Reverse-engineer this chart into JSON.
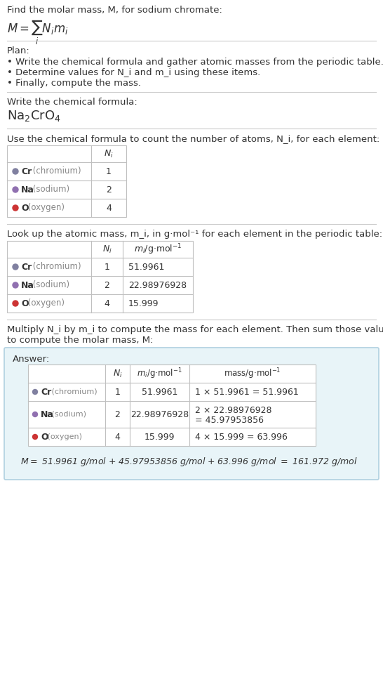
{
  "title_line1": "Find the molar mass, M, for sodium chromate:",
  "title_formula": "M = ∑ N_i m_i",
  "title_formula_sub": "i",
  "plan_header": "Plan:",
  "plan_bullets": [
    "• Write the chemical formula and gather atomic masses from the periodic table.",
    "• Determine values for N_i and m_i using these items.",
    "• Finally, compute the mass."
  ],
  "formula_header": "Write the chemical formula:",
  "chemical_formula": "Na₂CrO₄",
  "table1_header": "Use the chemical formula to count the number of atoms, N_i, for each element:",
  "table1_col_headers": [
    "",
    "N_i"
  ],
  "table1_rows": [
    {
      "element": "Cr",
      "name": "chromium",
      "Ni": "1",
      "color": "#8080a0"
    },
    {
      "element": "Na",
      "name": "sodium",
      "Ni": "2",
      "color": "#9070b0"
    },
    {
      "element": "O",
      "name": "oxygen",
      "Ni": "4",
      "color": "#cc3333"
    }
  ],
  "table2_header": "Look up the atomic mass, m_i, in g·mol⁻¹ for each element in the periodic table:",
  "table2_col_headers": [
    "",
    "N_i",
    "m_i/g·mol⁻¹"
  ],
  "table2_rows": [
    {
      "element": "Cr",
      "name": "chromium",
      "Ni": "1",
      "mi": "51.9961",
      "color": "#8080a0"
    },
    {
      "element": "Na",
      "name": "sodium",
      "Ni": "2",
      "mi": "22.98976928",
      "color": "#9070b0"
    },
    {
      "element": "O",
      "name": "oxygen",
      "Ni": "4",
      "mi": "15.999",
      "color": "#cc3333"
    }
  ],
  "table3_header": "Multiply N_i by m_i to compute the mass for each element. Then sum those values\nto compute the molar mass, M:",
  "table3_col_headers": [
    "",
    "N_i",
    "m_i/g·mol⁻¹",
    "mass/g·mol⁻¹"
  ],
  "table3_rows": [
    {
      "element": "Cr",
      "name": "chromium",
      "Ni": "1",
      "mi": "51.9961",
      "mass": "1 × 51.9961 = 51.9961",
      "color": "#8080a0"
    },
    {
      "element": "Na",
      "name": "sodium",
      "Ni": "2",
      "mi": "22.98976928",
      "mass": "2 × 22.98976928\n= 45.97953856",
      "color": "#9070b0"
    },
    {
      "element": "O",
      "name": "oxygen",
      "Ni": "4",
      "mi": "15.999",
      "mass": "4 × 15.999 = 63.996",
      "color": "#cc3333"
    }
  ],
  "final_equation": "M = 51.9961 g/mol + 45.97953856 g/mol + 63.996 g/mol = 161.972 g/mol",
  "answer_bg_color": "#e8f4f8",
  "answer_box_border": "#b0d0e0",
  "table_border_color": "#c0c0c0",
  "text_color": "#333333",
  "gray_text": "#888888",
  "bg_color": "#ffffff"
}
